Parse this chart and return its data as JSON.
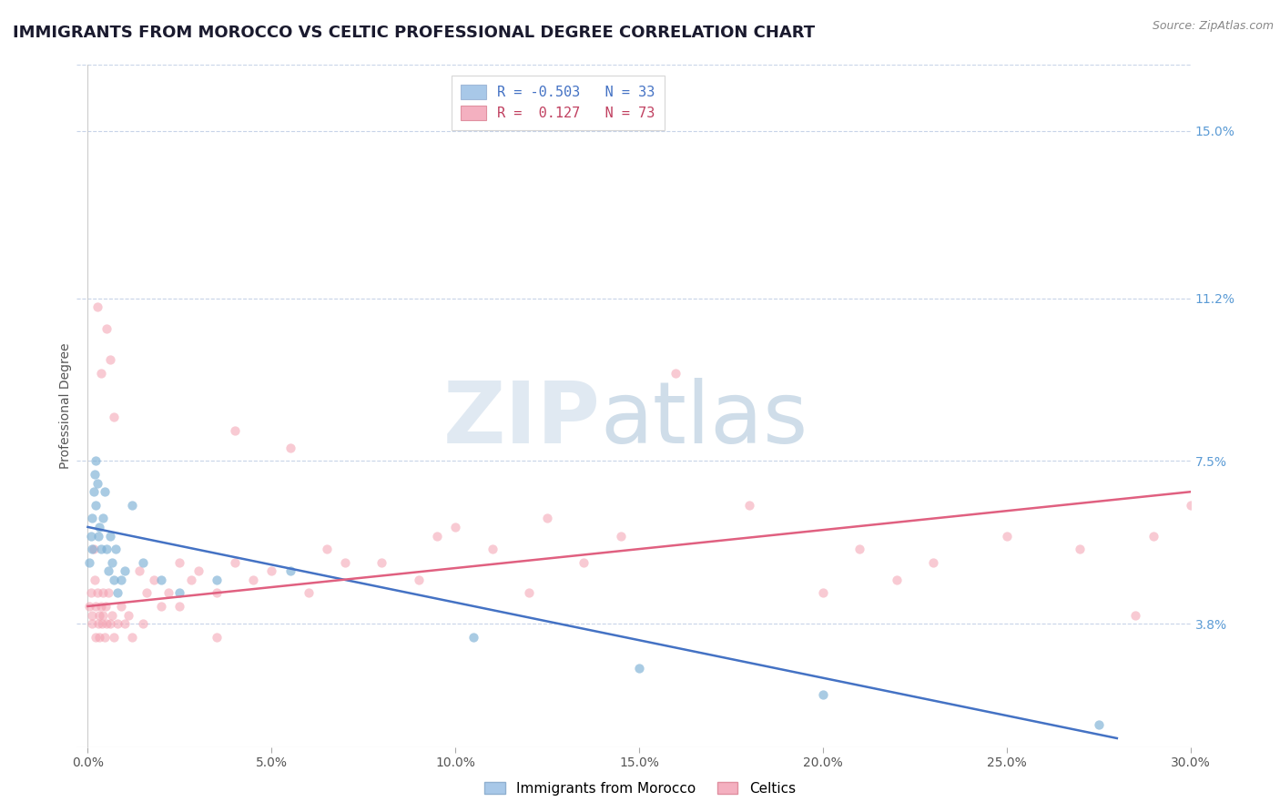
{
  "title": "IMMIGRANTS FROM MOROCCO VS CELTIC PROFESSIONAL DEGREE CORRELATION CHART",
  "source_text": "Source: ZipAtlas.com",
  "xlabel": "",
  "ylabel": "Professional Degree",
  "x_tick_labels": [
    "0.0%",
    "5.0%",
    "10.0%",
    "15.0%",
    "20.0%",
    "25.0%",
    "30.0%"
  ],
  "x_tick_values": [
    0.0,
    5.0,
    10.0,
    15.0,
    20.0,
    25.0,
    30.0
  ],
  "y_tick_labels": [
    "3.8%",
    "7.5%",
    "11.2%",
    "15.0%"
  ],
  "y_tick_values": [
    3.8,
    7.5,
    11.2,
    15.0
  ],
  "xlim": [
    -0.3,
    30.0
  ],
  "ylim": [
    1.0,
    16.5
  ],
  "legend_entries": [
    {
      "label_r": "R = -0.503",
      "label_n": "N = 33",
      "color": "#a8c4e0"
    },
    {
      "label_r": "R =  0.127",
      "label_n": "N = 73",
      "color": "#f4a8b8"
    }
  ],
  "legend_bottom_labels": [
    "Immigrants from Morocco",
    "Celtics"
  ],
  "blue_scatter": {
    "x": [
      0.05,
      0.08,
      0.1,
      0.12,
      0.15,
      0.18,
      0.2,
      0.22,
      0.25,
      0.28,
      0.3,
      0.35,
      0.4,
      0.45,
      0.5,
      0.55,
      0.6,
      0.65,
      0.7,
      0.75,
      0.8,
      0.9,
      1.0,
      1.2,
      1.5,
      2.0,
      2.5,
      3.5,
      5.5,
      10.5,
      15.0,
      20.0,
      27.5
    ],
    "y": [
      5.2,
      5.8,
      6.2,
      5.5,
      6.8,
      7.2,
      7.5,
      6.5,
      7.0,
      5.8,
      6.0,
      5.5,
      6.2,
      6.8,
      5.5,
      5.0,
      5.8,
      5.2,
      4.8,
      5.5,
      4.5,
      4.8,
      5.0,
      6.5,
      5.2,
      4.8,
      4.5,
      4.8,
      5.0,
      3.5,
      2.8,
      2.2,
      1.5
    ],
    "color": "#7bafd4",
    "alpha": 0.65,
    "size": 55
  },
  "pink_scatter": {
    "x": [
      0.05,
      0.08,
      0.1,
      0.12,
      0.15,
      0.18,
      0.2,
      0.22,
      0.25,
      0.28,
      0.3,
      0.32,
      0.35,
      0.38,
      0.4,
      0.42,
      0.45,
      0.48,
      0.5,
      0.55,
      0.6,
      0.65,
      0.7,
      0.8,
      0.9,
      1.0,
      1.1,
      1.2,
      1.4,
      1.6,
      1.8,
      2.0,
      2.2,
      2.5,
      2.8,
      3.0,
      3.5,
      4.0,
      4.5,
      5.0,
      6.0,
      7.0,
      9.0,
      10.0,
      12.0,
      13.5,
      16.0,
      20.0,
      22.0,
      28.5,
      1.5,
      2.5,
      3.5,
      4.0,
      5.5,
      6.5,
      8.0,
      9.5,
      11.0,
      12.5,
      14.5,
      18.0,
      21.0,
      23.0,
      25.0,
      27.0,
      29.0,
      30.0,
      0.25,
      0.35,
      0.5,
      0.6,
      0.7
    ],
    "y": [
      4.2,
      4.5,
      3.8,
      4.0,
      5.5,
      4.8,
      4.2,
      3.5,
      4.5,
      3.8,
      4.0,
      3.5,
      4.2,
      3.8,
      4.5,
      4.0,
      3.5,
      4.2,
      3.8,
      4.5,
      3.8,
      4.0,
      3.5,
      3.8,
      4.2,
      3.8,
      4.0,
      3.5,
      5.0,
      4.5,
      4.8,
      4.2,
      4.5,
      5.2,
      4.8,
      5.0,
      4.5,
      5.2,
      4.8,
      5.0,
      4.5,
      5.2,
      4.8,
      6.0,
      4.5,
      5.2,
      9.5,
      4.5,
      4.8,
      4.0,
      3.8,
      4.2,
      3.5,
      8.2,
      7.8,
      5.5,
      5.2,
      5.8,
      5.5,
      6.2,
      5.8,
      6.5,
      5.5,
      5.2,
      5.8,
      5.5,
      5.8,
      6.5,
      11.0,
      9.5,
      10.5,
      9.8,
      8.5
    ],
    "color": "#f4a0b0",
    "alpha": 0.55,
    "size": 55
  },
  "blue_trend": {
    "x_start": 0.0,
    "x_end": 28.0,
    "y_start": 6.0,
    "y_end": 1.2,
    "color": "#4472c4",
    "linewidth": 1.8
  },
  "pink_trend": {
    "x_start": 0.0,
    "x_end": 30.0,
    "y_start": 4.2,
    "y_end": 6.8,
    "color": "#e06080",
    "linewidth": 1.8
  },
  "watermark_zip": "ZIP",
  "watermark_atlas": "atlas",
  "background_color": "#ffffff",
  "grid_color": "#c8d4e8",
  "title_fontsize": 13,
  "axis_label_fontsize": 10,
  "tick_fontsize": 10,
  "right_tick_color": "#5b9bd5"
}
